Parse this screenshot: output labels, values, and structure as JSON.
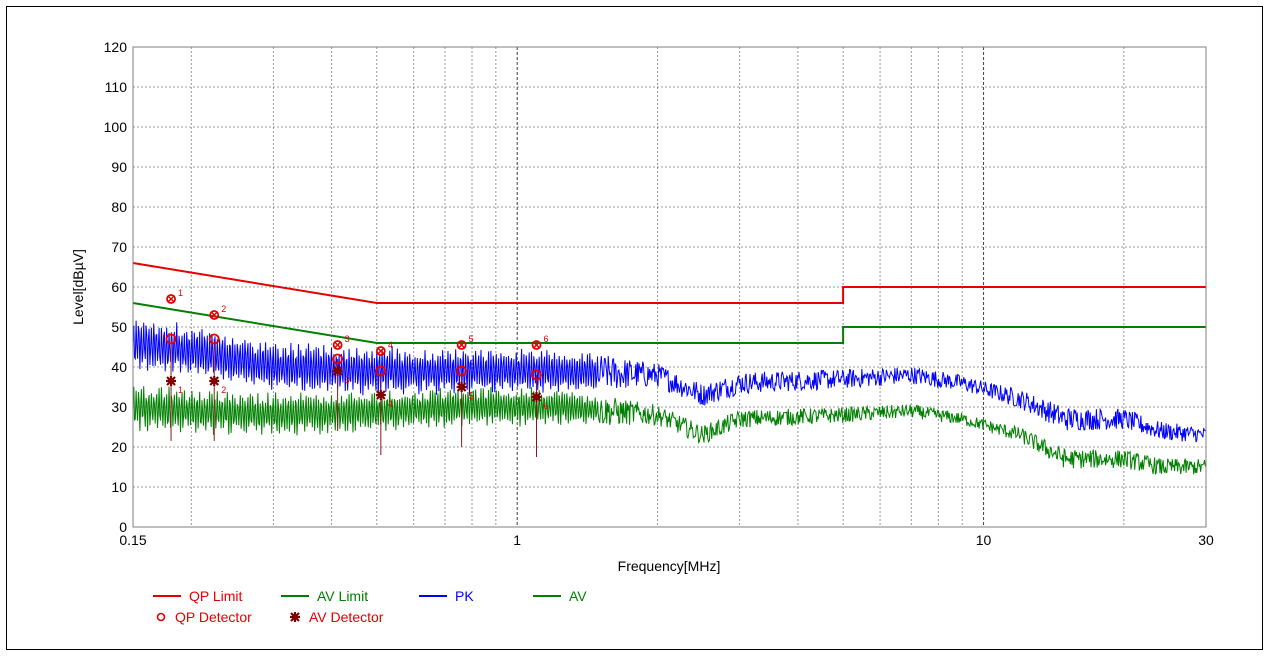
{
  "chart_data": {
    "type": "line",
    "xlabel": "Frequency[MHz]",
    "ylabel": "Level[dBµV]",
    "xscale": "log",
    "xlim": [
      0.15,
      30
    ],
    "ylim": [
      0,
      120
    ],
    "grid": true,
    "x_ticks": [
      {
        "value": 0.15,
        "label": "0.15"
      },
      {
        "value": 1,
        "label": "1"
      },
      {
        "value": 10,
        "label": "10"
      },
      {
        "value": 30,
        "label": "30"
      }
    ],
    "y_ticks": [
      0,
      10,
      20,
      30,
      40,
      50,
      60,
      70,
      80,
      90,
      100,
      110,
      120
    ],
    "colors": {
      "qp": "#e60000",
      "av_limit": "#008000",
      "pk": "#0000ff",
      "av": "#008000",
      "av_detector": "#800000"
    },
    "series": [
      {
        "name": "QP Limit",
        "style": "limit",
        "color": "#e60000",
        "points": [
          [
            0.15,
            66
          ],
          [
            0.5,
            56
          ],
          [
            5,
            56
          ],
          [
            5,
            60
          ],
          [
            30,
            60
          ]
        ]
      },
      {
        "name": "AV Limit",
        "style": "limit",
        "color": "#008000",
        "points": [
          [
            0.15,
            56
          ],
          [
            0.5,
            46
          ],
          [
            5,
            46
          ],
          [
            5,
            50
          ],
          [
            30,
            50
          ]
        ]
      },
      {
        "name": "PK",
        "style": "trace",
        "color": "#0000ff",
        "envelope": [
          [
            0.15,
            46
          ],
          [
            0.2,
            44
          ],
          [
            0.3,
            40
          ],
          [
            0.5,
            39
          ],
          [
            0.8,
            39
          ],
          [
            1.2,
            39
          ],
          [
            2,
            38
          ],
          [
            2.5,
            33
          ],
          [
            3,
            36
          ],
          [
            5,
            37
          ],
          [
            7,
            38
          ],
          [
            9,
            36
          ],
          [
            12,
            32
          ],
          [
            15,
            27
          ],
          [
            20,
            27
          ],
          [
            24,
            24
          ],
          [
            30,
            23
          ]
        ],
        "amplitude": [
          [
            0.15,
            7
          ],
          [
            1.2,
            6
          ],
          [
            2,
            3
          ],
          [
            10,
            2
          ],
          [
            15,
            3
          ],
          [
            30,
            2
          ]
        ]
      },
      {
        "name": "AV",
        "style": "trace",
        "color": "#008000",
        "envelope": [
          [
            0.15,
            30
          ],
          [
            0.2,
            29
          ],
          [
            0.3,
            28
          ],
          [
            0.5,
            29
          ],
          [
            0.8,
            30
          ],
          [
            1.2,
            30
          ],
          [
            2,
            28
          ],
          [
            2.5,
            23
          ],
          [
            3,
            27
          ],
          [
            5,
            28
          ],
          [
            7,
            29
          ],
          [
            9,
            27
          ],
          [
            12,
            23
          ],
          [
            15,
            17
          ],
          [
            20,
            17
          ],
          [
            24,
            15
          ],
          [
            30,
            15
          ]
        ],
        "amplitude": [
          [
            0.15,
            6
          ],
          [
            1.2,
            5
          ],
          [
            2,
            2.5
          ],
          [
            10,
            1.5
          ],
          [
            15,
            2.5
          ],
          [
            30,
            2
          ]
        ]
      }
    ],
    "markers": [
      {
        "label": "1",
        "f": 0.181,
        "pk": 57,
        "qp": 47,
        "av": 36.5
      },
      {
        "label": "2",
        "f": 0.224,
        "pk": 53,
        "qp": 47,
        "av": 36.5
      },
      {
        "label": "3",
        "f": 0.412,
        "pk": 45.5,
        "qp": 42,
        "av": 39
      },
      {
        "label": "4",
        "f": 0.51,
        "pk": 44,
        "qp": 39,
        "av": 33
      },
      {
        "label": "5",
        "f": 0.76,
        "pk": 45.5,
        "qp": 39,
        "av": 35
      },
      {
        "label": "6",
        "f": 1.1,
        "pk": 45.5,
        "qp": 38,
        "av": 32.5
      }
    ],
    "legend": {
      "placement": "bottom-left",
      "items": [
        {
          "label": "QP Limit",
          "kind": "line",
          "color": "#e60000"
        },
        {
          "label": "AV Limit",
          "kind": "line",
          "color": "#008000"
        },
        {
          "label": "PK",
          "kind": "line",
          "color": "#0000ff"
        },
        {
          "label": "AV",
          "kind": "line",
          "color": "#008000"
        },
        {
          "label": "QP Detector",
          "kind": "circle",
          "color": "#e60000"
        },
        {
          "label": "AV Detector",
          "kind": "star",
          "color": "#800000"
        }
      ]
    }
  }
}
